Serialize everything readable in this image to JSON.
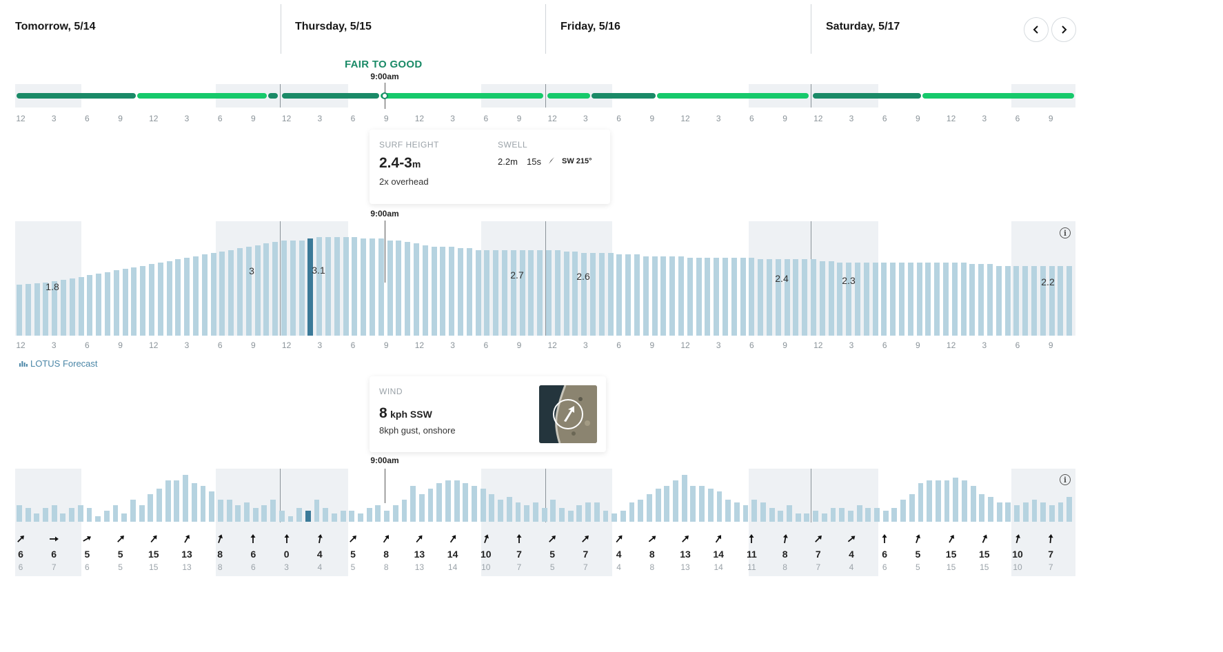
{
  "days": [
    {
      "label": "Tomorrow, 5/14"
    },
    {
      "label": "Thursday, 5/15"
    },
    {
      "label": "Friday, 5/16"
    },
    {
      "label": "Saturday, 5/17"
    }
  ],
  "nav": {
    "prev_icon": "chevron-left-icon",
    "next_icon": "chevron-right-icon"
  },
  "colors": {
    "rating_fair": "#1a8a67",
    "rating_fair_to_good": "#16c96b",
    "surf_bar": "#b6d3e0",
    "surf_bar_selected": "#3b7a98",
    "shade": "#eef1f4",
    "rating_text": "#1a8a67"
  },
  "hour_ticks": [
    "12",
    "3",
    "6",
    "9",
    "12",
    "3",
    "6",
    "9",
    "12",
    "3",
    "6",
    "9",
    "12",
    "3",
    "6",
    "9",
    "12",
    "3",
    "6",
    "9",
    "12",
    "3",
    "6",
    "9",
    "12",
    "3",
    "6",
    "9",
    "12",
    "3",
    "6",
    "9"
  ],
  "rating": {
    "label": "FAIR TO GOOD",
    "time": "9:00am",
    "segments": [
      {
        "day": 0,
        "from_hour": 0,
        "to_hour": 11,
        "rating": "fair"
      },
      {
        "day": 0,
        "from_hour": 11,
        "to_hour": 23,
        "rating": "fair-to-good"
      },
      {
        "day": 0,
        "from_hour": 23,
        "to_hour": 24,
        "rating": "fair"
      },
      {
        "day": 1,
        "from_hour": 0,
        "to_hour": 9,
        "rating": "fair"
      },
      {
        "day": 1,
        "from_hour": 9,
        "to_hour": 24,
        "rating": "fair-to-good"
      },
      {
        "day": 2,
        "from_hour": 0,
        "to_hour": 4,
        "rating": "fair-to-good"
      },
      {
        "day": 2,
        "from_hour": 4,
        "to_hour": 10,
        "rating": "fair"
      },
      {
        "day": 2,
        "from_hour": 10,
        "to_hour": 24,
        "rating": "fair-to-good"
      },
      {
        "day": 3,
        "from_hour": 0,
        "to_hour": 10,
        "rating": "fair"
      },
      {
        "day": 3,
        "from_hour": 10,
        "to_hour": 24,
        "rating": "fair-to-good"
      }
    ]
  },
  "surf_card": {
    "title": "SURF HEIGHT",
    "height_value": "2.4-3",
    "height_unit": "m",
    "description": "2x overhead",
    "swell_title": "SWELL",
    "swell_height": "2.2m",
    "swell_period": "15s",
    "swell_direction": "SW 215°",
    "swell_icon": "swell-direction-arrow-icon"
  },
  "surf_chart": {
    "time": "9:00am",
    "info_icon": "info-icon",
    "peaks": [
      "1.8",
      "3",
      "3.1",
      "2.7",
      "2.6",
      "2.4",
      "2.3",
      "2.2"
    ]
  },
  "lotus": {
    "label": "LOTUS Forecast",
    "icon": "bar-chart-icon"
  },
  "wind_card": {
    "title": "WIND",
    "speed_value": "8",
    "speed_unit": "kph SSW",
    "description": "8kph gust, onshore",
    "map_icon": "wind-direction-map"
  },
  "wind_chart": {
    "time": "9:00am",
    "info_icon": "info-icon",
    "speeds": [
      "6",
      "6",
      "5",
      "5",
      "15",
      "13",
      "8",
      "6",
      "0",
      "4",
      "5",
      "8",
      "13",
      "14",
      "10",
      "7",
      "5",
      "7",
      "4",
      "8",
      "13",
      "14",
      "11",
      "8",
      "7",
      "4",
      "6",
      "5",
      "15",
      "15",
      "10",
      "7"
    ],
    "gusts": [
      "6",
      "7",
      "6",
      "5",
      "15",
      "13",
      "8",
      "6",
      "3",
      "4",
      "5",
      "8",
      "13",
      "14",
      "10",
      "7",
      "5",
      "7",
      "4",
      "8",
      "13",
      "14",
      "11",
      "8",
      "7",
      "4",
      "6",
      "5",
      "15",
      "15",
      "10",
      "7"
    ],
    "directions_deg": [
      45,
      90,
      60,
      45,
      40,
      30,
      20,
      0,
      0,
      10,
      45,
      35,
      40,
      35,
      20,
      0,
      45,
      45,
      40,
      50,
      45,
      35,
      0,
      10,
      45,
      50,
      0,
      20,
      30,
      25,
      15,
      5
    ]
  },
  "chart_data": [
    {
      "type": "bar",
      "title": "Surf height",
      "ylabel": "m",
      "x_unit": "hour (3-hour ticks, 4 days)",
      "values": [
        1.6,
        1.62,
        1.65,
        1.68,
        1.72,
        1.76,
        1.8,
        1.85,
        1.9,
        1.95,
        2.0,
        2.05,
        2.1,
        2.15,
        2.2,
        2.25,
        2.3,
        2.35,
        2.4,
        2.45,
        2.5,
        2.55,
        2.6,
        2.65,
        2.7,
        2.75,
        2.8,
        2.85,
        2.9,
        2.95,
        3.0,
        3.0,
        3.0,
        3.05,
        3.1,
        3.1,
        3.1,
        3.1,
        3.1,
        3.05,
        3.05,
        3.05,
        3.0,
        3.0,
        2.95,
        2.9,
        2.85,
        2.8,
        2.8,
        2.8,
        2.75,
        2.75,
        2.7,
        2.7,
        2.7,
        2.7,
        2.7,
        2.7,
        2.7,
        2.7,
        2.7,
        2.7,
        2.65,
        2.65,
        2.6,
        2.6,
        2.6,
        2.6,
        2.55,
        2.55,
        2.55,
        2.5,
        2.5,
        2.5,
        2.5,
        2.5,
        2.45,
        2.45,
        2.45,
        2.45,
        2.45,
        2.45,
        2.45,
        2.45,
        2.4,
        2.4,
        2.4,
        2.4,
        2.4,
        2.4,
        2.4,
        2.35,
        2.35,
        2.3,
        2.3,
        2.3,
        2.3,
        2.3,
        2.3,
        2.3,
        2.3,
        2.3,
        2.3,
        2.3,
        2.3,
        2.3,
        2.3,
        2.3,
        2.25,
        2.25,
        2.25,
        2.2,
        2.2,
        2.2,
        2.2,
        2.2,
        2.2,
        2.2,
        2.2,
        2.2
      ],
      "selected_index": 33,
      "ylim": [
        0,
        3.6
      ]
    },
    {
      "type": "bar",
      "title": "Wind speed",
      "ylabel": "kph",
      "values": [
        6,
        5,
        3,
        5,
        6,
        3,
        5,
        6,
        5,
        2,
        4,
        6,
        3,
        8,
        6,
        10,
        12,
        15,
        15,
        17,
        14,
        13,
        11,
        8,
        8,
        6,
        7,
        5,
        6,
        8,
        4,
        2,
        5,
        4,
        8,
        5,
        3,
        4,
        4,
        3,
        5,
        6,
        4,
        6,
        8,
        13,
        10,
        12,
        14,
        15,
        15,
        14,
        13,
        12,
        10,
        8,
        9,
        7,
        6,
        7,
        5,
        8,
        5,
        4,
        6,
        7,
        7,
        4,
        3,
        4,
        7,
        8,
        10,
        12,
        13,
        15,
        17,
        13,
        13,
        12,
        11,
        8,
        7,
        6,
        8,
        7,
        5,
        4,
        6,
        3,
        3,
        4,
        3,
        5,
        5,
        4,
        6,
        5,
        5,
        4,
        5,
        8,
        10,
        14,
        15,
        15,
        15,
        16,
        15,
        13,
        10,
        9,
        7,
        7,
        6,
        7,
        8,
        7,
        6,
        7,
        9
      ],
      "selected_index": 33,
      "ylim": [
        0,
        18
      ]
    }
  ]
}
